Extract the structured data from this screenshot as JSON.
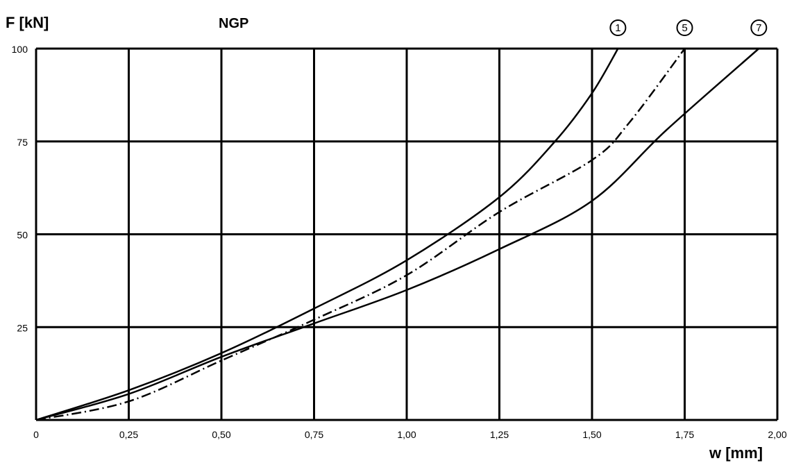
{
  "chart_data": {
    "type": "line",
    "title": "NGP",
    "ylabel": "F [kN]",
    "xlabel": "w [mm]",
    "xlim": [
      0,
      2.0
    ],
    "ylim": [
      0,
      100
    ],
    "x_ticks": [
      0,
      0.25,
      0.5,
      0.75,
      1.0,
      1.25,
      1.5,
      1.75,
      2.0
    ],
    "x_tick_labels": [
      "0",
      "0,25",
      "0,50",
      "0,75",
      "1,00",
      "1,25",
      "1,50",
      "1,75",
      "2,00"
    ],
    "y_ticks": [
      25,
      50,
      75,
      100
    ],
    "y_tick_labels": [
      "25",
      "50",
      "75",
      "100"
    ],
    "grid": true,
    "series": [
      {
        "name": "1",
        "style": "solid",
        "x": [
          0,
          0.25,
          0.5,
          0.75,
          1.0,
          1.25,
          1.4,
          1.5,
          1.57
        ],
        "y": [
          0,
          8,
          18,
          30,
          43,
          60,
          75,
          88,
          100
        ]
      },
      {
        "name": "5",
        "style": "dash-dot",
        "x": [
          0,
          0.25,
          0.5,
          0.75,
          1.0,
          1.25,
          1.5,
          1.6,
          1.75
        ],
        "y": [
          0,
          5,
          16,
          27,
          39,
          56,
          70,
          80,
          100
        ]
      },
      {
        "name": "7",
        "style": "solid",
        "x": [
          0,
          0.25,
          0.5,
          0.75,
          1.0,
          1.25,
          1.5,
          1.7,
          1.95
        ],
        "y": [
          0,
          7,
          17,
          26,
          35,
          46,
          59,
          78,
          100
        ]
      }
    ]
  }
}
